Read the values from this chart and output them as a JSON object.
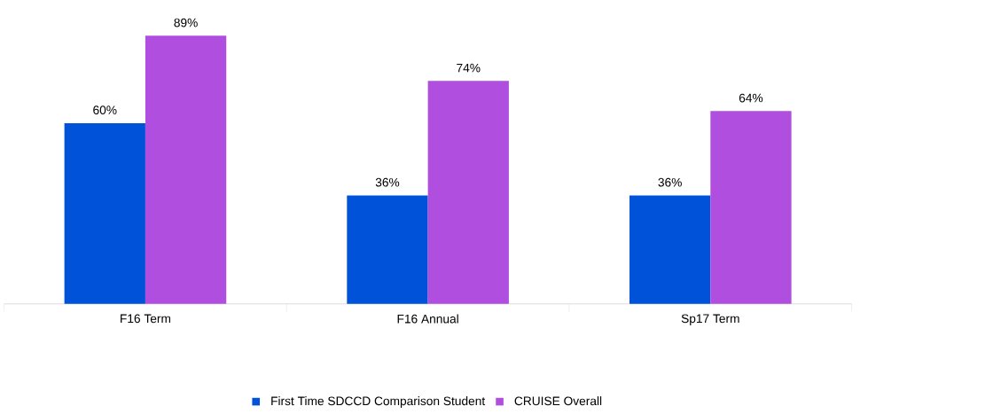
{
  "chart_data": {
    "type": "bar",
    "categories": [
      "F16 Term",
      "F16 Annual",
      "Sp17 Term"
    ],
    "series": [
      {
        "name": "First Time SDCCD Comparison Student",
        "color": "#0052d9",
        "values": [
          60,
          36,
          36
        ],
        "value_labels": [
          "60%",
          "36%",
          "36%"
        ]
      },
      {
        "name": "CRUISE Overall",
        "color": "#b04ee0",
        "values": [
          89,
          74,
          64
        ],
        "value_labels": [
          "89%",
          "74%",
          "64%"
        ]
      }
    ],
    "legend": "bottom"
  }
}
